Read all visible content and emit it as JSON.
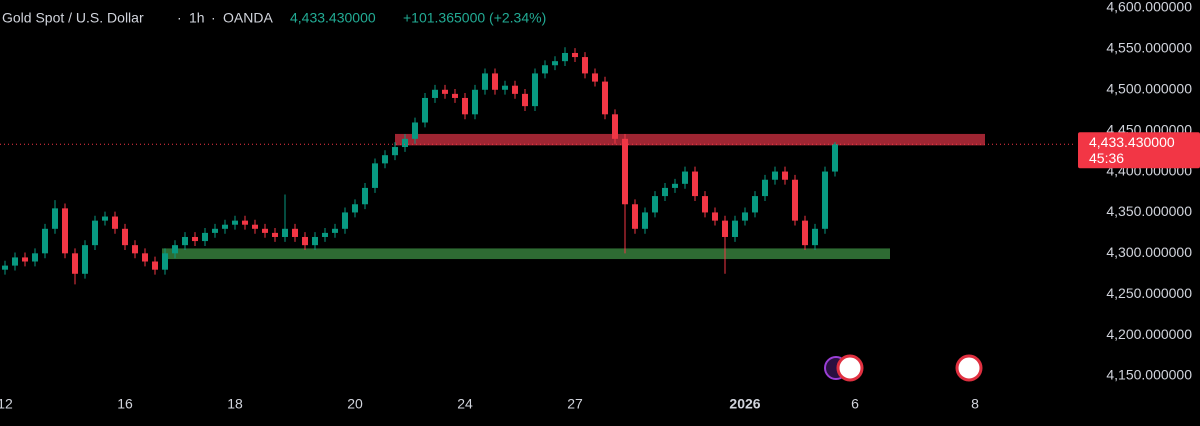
{
  "chart_data": {
    "type": "candlestick",
    "header": {
      "symbol": "Gold Spot / U.S. Dollar",
      "separator": "·",
      "interval": "1h",
      "exchange": "OANDA",
      "change": "+101.365000 (+2.34%)"
    },
    "last_price": {
      "value": 4433.43,
      "label": "4,433.430000"
    },
    "countdown": "45:36",
    "up_color": "#089981",
    "down_color": "#f23645",
    "categories": [
      "12",
      null,
      null,
      null,
      null,
      null,
      null,
      null,
      null,
      null,
      null,
      null,
      "16",
      null,
      null,
      null,
      null,
      null,
      null,
      null,
      null,
      null,
      null,
      "18",
      null,
      null,
      null,
      null,
      null,
      null,
      null,
      null,
      null,
      null,
      null,
      "20",
      null,
      null,
      null,
      null,
      null,
      null,
      null,
      null,
      null,
      null,
      "24",
      null,
      null,
      null,
      null,
      null,
      null,
      null,
      null,
      null,
      null,
      "27",
      null,
      null,
      null,
      null,
      null,
      null,
      null,
      null,
      null,
      null,
      null,
      null,
      null,
      null,
      null,
      null,
      "2026",
      null,
      null,
      null,
      null,
      null,
      null,
      null,
      null,
      null,
      null,
      "6",
      null,
      null,
      null,
      null,
      null,
      null,
      null,
      null,
      null,
      null,
      null,
      "8",
      null,
      null,
      null,
      null,
      null,
      null,
      null,
      null,
      null,
      null
    ],
    "open": [
      4280,
      4285,
      4295,
      4290,
      4300,
      4330,
      4355,
      4300,
      4275,
      4310,
      4340,
      4345,
      4330,
      4310,
      4300,
      4290,
      4280,
      4300,
      4310,
      4320,
      4315,
      4325,
      4330,
      4335,
      4340,
      4335,
      4330,
      4325,
      4320,
      4330,
      4320,
      4310,
      4320,
      4325,
      4330,
      4350,
      4360,
      4380,
      4410,
      4420,
      4430,
      4440,
      4460,
      4490,
      4500,
      4495,
      4490,
      4470,
      4500,
      4520,
      4500,
      4505,
      4495,
      4480,
      4520,
      4530,
      4535,
      4545,
      4540,
      4520,
      4510,
      4470,
      4440,
      4360,
      4330,
      4350,
      4370,
      4380,
      4385,
      4400,
      4370,
      4350,
      4340,
      4320,
      4340,
      4350,
      4370,
      4390,
      4400,
      4390,
      4340,
      4310,
      4330,
      4400,
      null,
      null,
      null,
      null,
      null,
      null,
      null,
      null,
      null,
      null,
      null,
      null,
      null,
      null,
      null,
      null,
      null,
      null,
      null,
      null,
      null,
      null,
      null,
      null
    ],
    "high": [
      4291,
      4301,
      4301,
      4306,
      4336,
      4365,
      4361,
      4306,
      4316,
      4346,
      4351,
      4351,
      4336,
      4316,
      4306,
      4296,
      4306,
      4316,
      4326,
      4326,
      4331,
      4336,
      4341,
      4346,
      4346,
      4341,
      4336,
      4331,
      4372,
      4336,
      4326,
      4326,
      4331,
      4336,
      4356,
      4366,
      4386,
      4416,
      4426,
      4436,
      4446,
      4466,
      4496,
      4506,
      4506,
      4501,
      4496,
      4506,
      4526,
      4526,
      4511,
      4511,
      4501,
      4526,
      4536,
      4541,
      4552,
      4551,
      4546,
      4526,
      4516,
      4476,
      4446,
      4366,
      4356,
      4376,
      4386,
      4391,
      4406,
      4406,
      4376,
      4356,
      4346,
      4346,
      4356,
      4376,
      4396,
      4406,
      4406,
      4396,
      4346,
      4336,
      4406,
      4436,
      null,
      null,
      null,
      null,
      null,
      null,
      null,
      null,
      null,
      null,
      null,
      null,
      null,
      null,
      null,
      null,
      null,
      null,
      null,
      null,
      null,
      null,
      null,
      null
    ],
    "low": [
      4274,
      4279,
      4284,
      4284,
      4294,
      4324,
      4294,
      4262,
      4269,
      4304,
      4334,
      4324,
      4304,
      4294,
      4284,
      4274,
      4274,
      4294,
      4304,
      4309,
      4309,
      4319,
      4324,
      4329,
      4329,
      4324,
      4319,
      4314,
      4314,
      4314,
      4304,
      4304,
      4314,
      4319,
      4324,
      4344,
      4354,
      4374,
      4404,
      4414,
      4424,
      4434,
      4454,
      4484,
      4489,
      4484,
      4464,
      4464,
      4494,
      4494,
      4494,
      4489,
      4474,
      4474,
      4514,
      4524,
      4529,
      4534,
      4514,
      4504,
      4464,
      4434,
      4300,
      4324,
      4324,
      4344,
      4364,
      4374,
      4379,
      4364,
      4344,
      4334,
      4275,
      4314,
      4334,
      4344,
      4364,
      4384,
      4384,
      4334,
      4304,
      4304,
      4324,
      4394,
      null,
      null,
      null,
      null,
      null,
      null,
      null,
      null,
      null,
      null,
      null,
      null,
      null,
      null,
      null,
      null,
      null,
      null,
      null,
      null,
      null,
      null,
      null,
      null
    ],
    "close": [
      4285,
      4295,
      4290,
      4300,
      4330,
      4355,
      4300,
      4275,
      4310,
      4340,
      4345,
      4330,
      4310,
      4300,
      4290,
      4280,
      4300,
      4310,
      4320,
      4315,
      4325,
      4330,
      4335,
      4340,
      4335,
      4330,
      4325,
      4320,
      4330,
      4320,
      4310,
      4320,
      4325,
      4330,
      4350,
      4360,
      4380,
      4410,
      4420,
      4430,
      4440,
      4460,
      4490,
      4500,
      4495,
      4490,
      4470,
      4500,
      4520,
      4500,
      4505,
      4495,
      4480,
      4520,
      4530,
      4535,
      4545,
      4540,
      4520,
      4510,
      4470,
      4440,
      4360,
      4330,
      4350,
      4370,
      4380,
      4385,
      4400,
      4370,
      4350,
      4340,
      4320,
      4340,
      4350,
      4370,
      4390,
      4400,
      4390,
      4340,
      4310,
      4330,
      4400,
      4433.43,
      null,
      null,
      null,
      null,
      null,
      null,
      null,
      null,
      null,
      null,
      null,
      null,
      null,
      null,
      null,
      null,
      null,
      null,
      null,
      null,
      null,
      null,
      null,
      null
    ],
    "zones": [
      {
        "low": 4432,
        "high": 4446,
        "color": "#9e2532"
      },
      {
        "low": 4293,
        "high": 4306,
        "color": "#2e6b33"
      }
    ],
    "ylim": [
      4150,
      4600
    ],
    "yticks": [
      {
        "value": 4150,
        "label": "4,150.000000"
      },
      {
        "value": 4200,
        "label": "4,200.000000"
      },
      {
        "value": 4250,
        "label": "4,250.000000"
      },
      {
        "value": 4300,
        "label": "4,300.000000"
      },
      {
        "value": 4350,
        "label": "4,350.000000"
      },
      {
        "value": 4400,
        "label": "4,400.000000"
      },
      {
        "value": 4450,
        "label": "4,450.000000"
      },
      {
        "value": 4500,
        "label": "4,500.000000"
      },
      {
        "value": 4550,
        "label": "4,550.000000"
      },
      {
        "value": 4600,
        "label": "4,600.000000"
      }
    ]
  }
}
